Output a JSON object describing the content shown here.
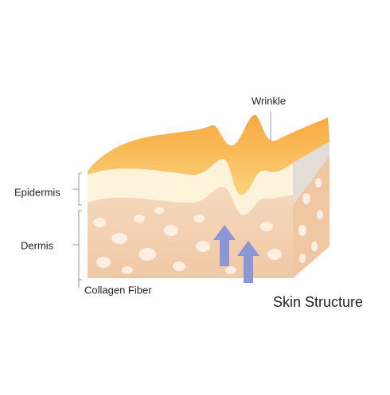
{
  "title": "Skin Structure",
  "labels": {
    "wrinkle": "Wrinkle",
    "epidermis": "Epidermis",
    "dermis": "Dermis",
    "collagen_fiber": "Collagen Fiber"
  }
}
